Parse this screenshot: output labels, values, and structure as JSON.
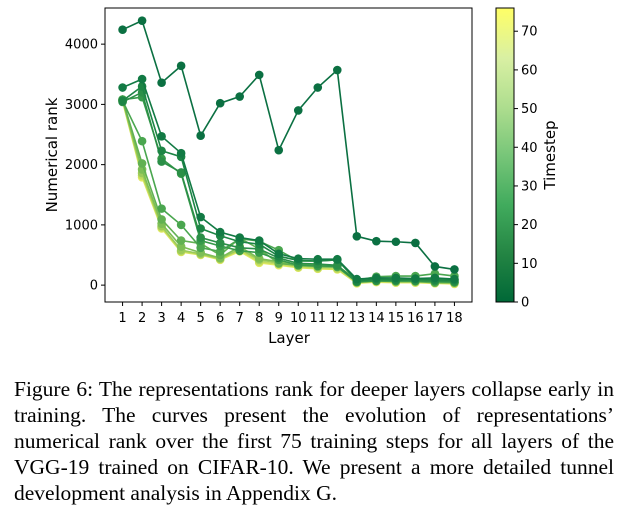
{
  "chart_data": {
    "type": "line",
    "xlabel": "Layer",
    "ylabel": "Numerical rank",
    "x": [
      1,
      2,
      3,
      4,
      5,
      6,
      7,
      8,
      9,
      10,
      11,
      12,
      13,
      14,
      15,
      16,
      17,
      18
    ],
    "x_ticks": [
      "1",
      "2",
      "3",
      "4",
      "5",
      "6",
      "7",
      "8",
      "9",
      "10",
      "11",
      "12",
      "13",
      "14",
      "15",
      "16",
      "17",
      "18"
    ],
    "xlim": [
      0.1,
      18.9
    ],
    "ylim": [
      -280,
      4600
    ],
    "y_ticks": [
      0,
      1000,
      2000,
      3000,
      4000
    ],
    "y_tick_labels": [
      "0",
      "1000",
      "2000",
      "3000",
      "4000"
    ],
    "grid": false,
    "colorbar": {
      "label": "Timestep",
      "range": [
        0,
        76
      ],
      "ticks": [
        0,
        10,
        20,
        30,
        40,
        50,
        60,
        70
      ],
      "tick_labels": [
        "0",
        "10",
        "20",
        "30",
        "40",
        "50",
        "60",
        "70"
      ],
      "colors": [
        "#006837",
        "#238443",
        "#41ab5d",
        "#78c679",
        "#addd8e",
        "#d9f0a3",
        "#ffff66"
      ]
    },
    "series": [
      {
        "timestep": 0,
        "color": "#0b7042",
        "values": [
          4240,
          4390,
          3360,
          3640,
          2480,
          3020,
          3130,
          3490,
          2240,
          2900,
          3280,
          3570,
          810,
          730,
          720,
          700,
          310,
          260
        ]
      },
      {
        "timestep": 5,
        "color": "#127a44",
        "values": [
          3280,
          3420,
          2470,
          2190,
          1130,
          880,
          790,
          740,
          520,
          440,
          430,
          430,
          100,
          120,
          120,
          110,
          120,
          100
        ]
      },
      {
        "timestep": 10,
        "color": "#1d8545",
        "values": [
          3060,
          3300,
          2230,
          2130,
          940,
          820,
          720,
          680,
          480,
          410,
          400,
          420,
          70,
          100,
          90,
          100,
          90,
          80
        ]
      },
      {
        "timestep": 15,
        "color": "#2b8f47",
        "values": [
          3040,
          3200,
          2050,
          1870,
          790,
          700,
          620,
          600,
          450,
          360,
          350,
          330,
          60,
          80,
          80,
          80,
          70,
          60
        ]
      },
      {
        "timestep": 20,
        "color": "#379a4a",
        "values": [
          3080,
          3120,
          2100,
          1850,
          740,
          650,
          570,
          540,
          420,
          330,
          320,
          310,
          50,
          70,
          70,
          70,
          60,
          50
        ]
      },
      {
        "timestep": 30,
        "color": "#4aa64f",
        "values": [
          3060,
          2390,
          1270,
          1000,
          620,
          560,
          770,
          730,
          580,
          400,
          400,
          420,
          80,
          140,
          150,
          150,
          190,
          150
        ]
      },
      {
        "timestep": 40,
        "color": "#62b152",
        "values": [
          3080,
          2020,
          1090,
          740,
          690,
          500,
          780,
          600,
          360,
          330,
          310,
          300,
          50,
          70,
          60,
          60,
          40,
          40
        ]
      },
      {
        "timestep": 50,
        "color": "#7dbe55",
        "values": [
          3080,
          1920,
          1020,
          640,
          540,
          450,
          640,
          440,
          390,
          340,
          330,
          320,
          90,
          110,
          110,
          110,
          100,
          90
        ]
      },
      {
        "timestep": 60,
        "color": "#9ccb58",
        "values": [
          3070,
          1860,
          980,
          580,
          520,
          440,
          600,
          420,
          370,
          320,
          300,
          300,
          60,
          80,
          70,
          70,
          60,
          50
        ]
      },
      {
        "timestep": 70,
        "color": "#c3dc5c",
        "values": [
          3060,
          1820,
          960,
          560,
          510,
          430,
          580,
          390,
          350,
          300,
          280,
          270,
          40,
          60,
          50,
          50,
          40,
          30
        ]
      },
      {
        "timestep": 75,
        "color": "#e3ea62",
        "values": [
          3050,
          1790,
          940,
          550,
          500,
          420,
          560,
          370,
          330,
          290,
          270,
          260,
          30,
          50,
          40,
          40,
          30,
          20
        ]
      }
    ]
  },
  "caption": {
    "label": "Figure 6:",
    "text": " The representations rank for deeper layers collapse early in training. The curves present the evolution of representations’ numerical rank over the first 75 training steps for all layers of the VGG-19 trained on CIFAR-10. We present a more detailed tunnel development analysis in Appendix G."
  }
}
